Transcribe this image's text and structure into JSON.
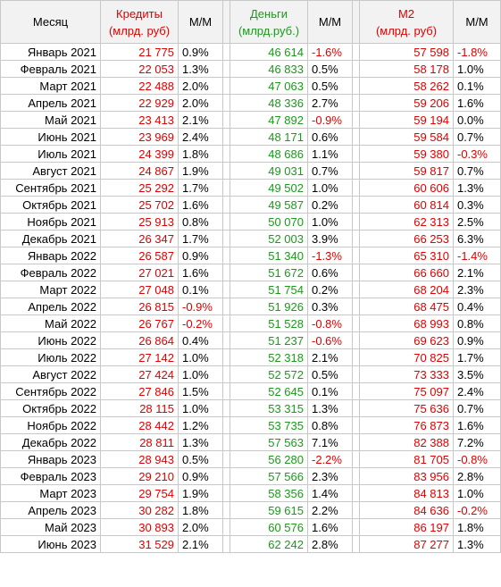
{
  "colors": {
    "credits": "#e00000",
    "money": "#1a9a1a",
    "m2": "#e00000",
    "negative": "#e00000",
    "positive": "#000000"
  },
  "headers": {
    "month": "Месяц",
    "credits_line1": "Кредиты",
    "credits_line2": "(млрд. руб)",
    "credits_mm": "М/М",
    "money_line1": "Деньги",
    "money_line2": "(млрд.руб.)",
    "money_mm": "М/М",
    "m2_line1": "М2",
    "m2_line2": "(млрд. руб)",
    "m2_mm": "М/М"
  },
  "rows": [
    {
      "month": "Январь 2021",
      "credits": "21 775",
      "credits_mm": "0.9%",
      "money": "46 614",
      "money_mm": "-1.6%",
      "m2": "57 598",
      "m2_mm": "-1.8%"
    },
    {
      "month": "Февраль 2021",
      "credits": "22 053",
      "credits_mm": "1.3%",
      "money": "46 833",
      "money_mm": "0.5%",
      "m2": "58 178",
      "m2_mm": "1.0%"
    },
    {
      "month": "Март 2021",
      "credits": "22 488",
      "credits_mm": "2.0%",
      "money": "47 063",
      "money_mm": "0.5%",
      "m2": "58 262",
      "m2_mm": "0.1%"
    },
    {
      "month": "Апрель 2021",
      "credits": "22 929",
      "credits_mm": "2.0%",
      "money": "48 336",
      "money_mm": "2.7%",
      "m2": "59 206",
      "m2_mm": "1.6%"
    },
    {
      "month": "Май 2021",
      "credits": "23 413",
      "credits_mm": "2.1%",
      "money": "47 892",
      "money_mm": "-0.9%",
      "m2": "59 194",
      "m2_mm": "0.0%"
    },
    {
      "month": "Июнь 2021",
      "credits": "23 969",
      "credits_mm": "2.4%",
      "money": "48 171",
      "money_mm": "0.6%",
      "m2": "59 584",
      "m2_mm": "0.7%"
    },
    {
      "month": "Июль 2021",
      "credits": "24 399",
      "credits_mm": "1.8%",
      "money": "48 686",
      "money_mm": "1.1%",
      "m2": "59 380",
      "m2_mm": "-0.3%"
    },
    {
      "month": "Август 2021",
      "credits": "24 867",
      "credits_mm": "1.9%",
      "money": "49 031",
      "money_mm": "0.7%",
      "m2": "59 817",
      "m2_mm": "0.7%"
    },
    {
      "month": "Сентябрь 2021",
      "credits": "25 292",
      "credits_mm": "1.7%",
      "money": "49 502",
      "money_mm": "1.0%",
      "m2": "60 606",
      "m2_mm": "1.3%"
    },
    {
      "month": "Октябрь 2021",
      "credits": "25 702",
      "credits_mm": "1.6%",
      "money": "49 587",
      "money_mm": "0.2%",
      "m2": "60 814",
      "m2_mm": "0.3%"
    },
    {
      "month": "Ноябрь 2021",
      "credits": "25 913",
      "credits_mm": "0.8%",
      "money": "50 070",
      "money_mm": "1.0%",
      "m2": "62 313",
      "m2_mm": "2.5%"
    },
    {
      "month": "Декабрь 2021",
      "credits": "26 347",
      "credits_mm": "1.7%",
      "money": "52 003",
      "money_mm": "3.9%",
      "m2": "66 253",
      "m2_mm": "6.3%"
    },
    {
      "month": "Январь 2022",
      "credits": "26 587",
      "credits_mm": "0.9%",
      "money": "51 340",
      "money_mm": "-1.3%",
      "m2": "65 310",
      "m2_mm": "-1.4%"
    },
    {
      "month": "Февраль 2022",
      "credits": "27 021",
      "credits_mm": "1.6%",
      "money": "51 672",
      "money_mm": "0.6%",
      "m2": "66 660",
      "m2_mm": "2.1%"
    },
    {
      "month": "Март 2022",
      "credits": "27 048",
      "credits_mm": "0.1%",
      "money": "51 754",
      "money_mm": "0.2%",
      "m2": "68 204",
      "m2_mm": "2.3%"
    },
    {
      "month": "Апрель 2022",
      "credits": "26 815",
      "credits_mm": "-0.9%",
      "money": "51 926",
      "money_mm": "0.3%",
      "m2": "68 475",
      "m2_mm": "0.4%"
    },
    {
      "month": "Май 2022",
      "credits": "26 767",
      "credits_mm": "-0.2%",
      "money": "51 528",
      "money_mm": "-0.8%",
      "m2": "68 993",
      "m2_mm": "0.8%"
    },
    {
      "month": "Июнь 2022",
      "credits": "26 864",
      "credits_mm": "0.4%",
      "money": "51 237",
      "money_mm": "-0.6%",
      "m2": "69 623",
      "m2_mm": "0.9%"
    },
    {
      "month": "Июль 2022",
      "credits": "27 142",
      "credits_mm": "1.0%",
      "money": "52 318",
      "money_mm": "2.1%",
      "m2": "70 825",
      "m2_mm": "1.7%"
    },
    {
      "month": "Август 2022",
      "credits": "27 424",
      "credits_mm": "1.0%",
      "money": "52 572",
      "money_mm": "0.5%",
      "m2": "73 333",
      "m2_mm": "3.5%"
    },
    {
      "month": "Сентябрь 2022",
      "credits": "27 846",
      "credits_mm": "1.5%",
      "money": "52 645",
      "money_mm": "0.1%",
      "m2": "75 097",
      "m2_mm": "2.4%"
    },
    {
      "month": "Октябрь 2022",
      "credits": "28 115",
      "credits_mm": "1.0%",
      "money": "53 315",
      "money_mm": "1.3%",
      "m2": "75 636",
      "m2_mm": "0.7%"
    },
    {
      "month": "Ноябрь 2022",
      "credits": "28 442",
      "credits_mm": "1.2%",
      "money": "53 735",
      "money_mm": "0.8%",
      "m2": "76 873",
      "m2_mm": "1.6%"
    },
    {
      "month": "Декабрь 2022",
      "credits": "28 811",
      "credits_mm": "1.3%",
      "money": "57 563",
      "money_mm": "7.1%",
      "m2": "82 388",
      "m2_mm": "7.2%"
    },
    {
      "month": "Январь 2023",
      "credits": "28 943",
      "credits_mm": "0.5%",
      "money": "56 280",
      "money_mm": "-2.2%",
      "m2": "81 705",
      "m2_mm": "-0.8%"
    },
    {
      "month": "Февраль 2023",
      "credits": "29 210",
      "credits_mm": "0.9%",
      "money": "57 566",
      "money_mm": "2.3%",
      "m2": "83 956",
      "m2_mm": "2.8%"
    },
    {
      "month": "Март 2023",
      "credits": "29 754",
      "credits_mm": "1.9%",
      "money": "58 356",
      "money_mm": "1.4%",
      "m2": "84 813",
      "m2_mm": "1.0%"
    },
    {
      "month": "Апрель 2023",
      "credits": "30 282",
      "credits_mm": "1.8%",
      "money": "59 615",
      "money_mm": "2.2%",
      "m2": "84 636",
      "m2_mm": "-0.2%"
    },
    {
      "month": "Май 2023",
      "credits": "30 893",
      "credits_mm": "2.0%",
      "money": "60 576",
      "money_mm": "1.6%",
      "m2": "86 197",
      "m2_mm": "1.8%"
    },
    {
      "month": "Июнь 2023",
      "credits": "31 529",
      "credits_mm": "2.1%",
      "money": "62 242",
      "money_mm": "2.8%",
      "m2": "87 277",
      "m2_mm": "1.3%"
    }
  ]
}
